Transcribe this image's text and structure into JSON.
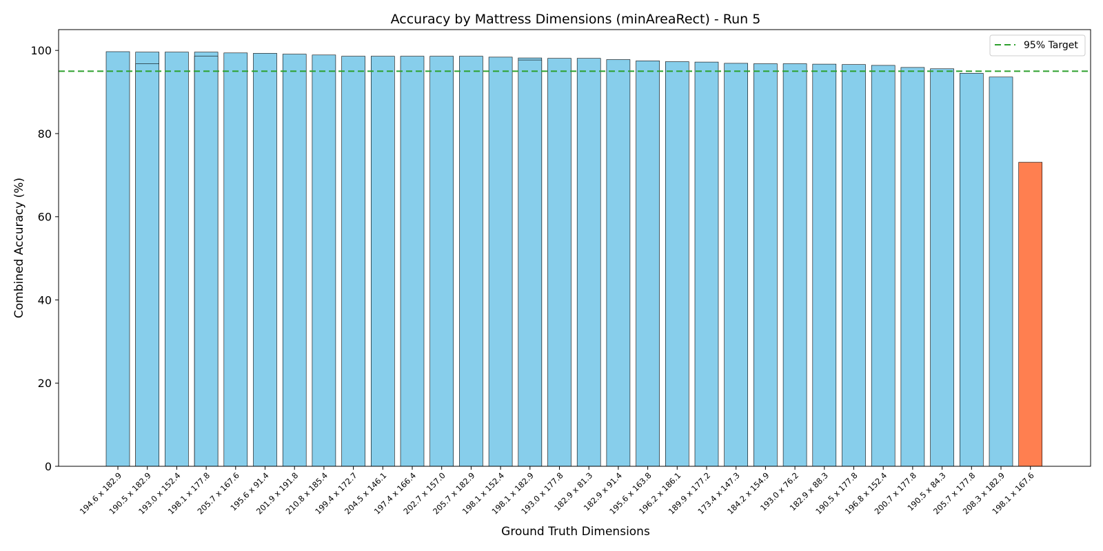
{
  "chart_data": {
    "type": "bar",
    "title": "Accuracy by Mattress Dimensions (minAreaRect) - Run 5",
    "xlabel": "Ground Truth Dimensions",
    "ylabel": "Combined Accuracy (%)",
    "ylim": [
      0,
      105
    ],
    "yticks": [
      0,
      20,
      40,
      60,
      80,
      100
    ],
    "grid": false,
    "categories": [
      "194.6 x 182.9",
      "190.5 x 182.9",
      "193.0 x 152.4",
      "198.1 x 177.8",
      "205.7 x 167.6",
      "195.6 x 91.4",
      "201.9 x 191.8",
      "210.8 x 185.4",
      "199.4 x 172.7",
      "204.5 x 146.1",
      "197.4 x 166.4",
      "202.7 x 157.0",
      "205.7 x 182.9",
      "198.1 x 152.4",
      "198.1 x 182.9",
      "193.0 x 177.8",
      "182.9 x 81.3",
      "182.9 x 91.4",
      "195.6 x 163.8",
      "196.2 x 186.1",
      "189.9 x 177.2",
      "173.4 x 147.3",
      "184.2 x 154.9",
      "193.0 x 76.2",
      "182.9 x 88.3",
      "190.5 x 177.8",
      "196.8 x 152.4",
      "200.7 x 177.8",
      "190.5 x 84.3",
      "205.7 x 177.8",
      "208.3 x 182.9",
      "198.1 x 167.6"
    ],
    "values": [
      99.7,
      99.6,
      99.6,
      99.6,
      99.4,
      99.3,
      99.1,
      98.9,
      98.6,
      98.6,
      98.6,
      98.6,
      98.6,
      98.4,
      98.2,
      98.1,
      98.1,
      97.8,
      97.5,
      97.3,
      97.2,
      96.9,
      96.8,
      96.8,
      96.7,
      96.6,
      96.4,
      95.9,
      95.6,
      94.5,
      93.6,
      73.1
    ],
    "overlaid_bars": [
      {
        "index": 1,
        "value": 96.8
      },
      {
        "index": 3,
        "value": 98.6
      },
      {
        "index": 14,
        "value": 97.7
      }
    ],
    "bar_colors": [
      "#87CEEB",
      "#87CEEB",
      "#87CEEB",
      "#87CEEB",
      "#87CEEB",
      "#87CEEB",
      "#87CEEB",
      "#87CEEB",
      "#87CEEB",
      "#87CEEB",
      "#87CEEB",
      "#87CEEB",
      "#87CEEB",
      "#87CEEB",
      "#87CEEB",
      "#87CEEB",
      "#87CEEB",
      "#87CEEB",
      "#87CEEB",
      "#87CEEB",
      "#87CEEB",
      "#87CEEB",
      "#87CEEB",
      "#87CEEB",
      "#87CEEB",
      "#87CEEB",
      "#87CEEB",
      "#87CEEB",
      "#87CEEB",
      "#87CEEB",
      "#87CEEB",
      "#FF7F50"
    ],
    "bar_edge_color": "#000000",
    "reference_line": {
      "value": 95,
      "label": "95% Target",
      "color": "#2ca02c",
      "style": "dashed"
    },
    "legend": {
      "position": "top-right",
      "entries": [
        "95% Target"
      ]
    }
  }
}
